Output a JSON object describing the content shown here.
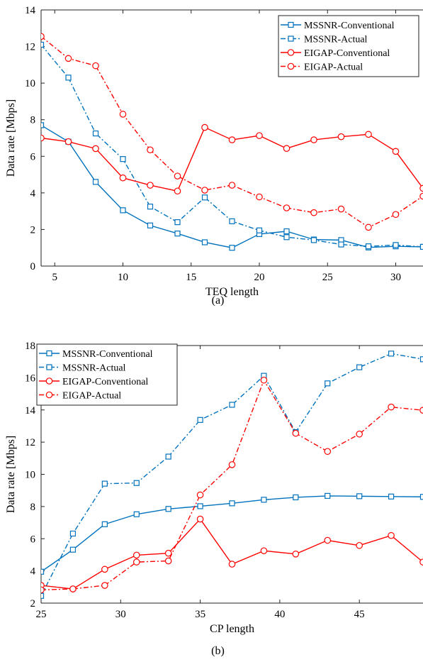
{
  "colors": {
    "mssnr": "#0072bd",
    "eigap": "#ff0000"
  },
  "chart_data": [
    {
      "type": "line",
      "caption": "(a)",
      "xlabel": "TEQ length",
      "ylabel": "Data rate [Mbps]",
      "xlim": [
        4,
        32
      ],
      "ylim": [
        0,
        14
      ],
      "xticks": [
        5,
        10,
        15,
        20,
        25,
        30
      ],
      "yticks": [
        0,
        2,
        4,
        6,
        8,
        10,
        12,
        14
      ],
      "legend_position": "top-right",
      "x": [
        4,
        6,
        8,
        10,
        12,
        14,
        16,
        18,
        20,
        22,
        24,
        26,
        28,
        30,
        32
      ],
      "series": [
        {
          "name": "MSSNR-Conventional",
          "color": "#0072bd",
          "style": "solid",
          "marker": "square",
          "values": [
            7.7,
            6.8,
            4.6,
            3.05,
            2.22,
            1.78,
            1.3,
            1.0,
            1.75,
            1.9,
            1.45,
            1.42,
            1.02,
            1.08,
            1.05
          ]
        },
        {
          "name": "MSSNR-Actual",
          "color": "#0072bd",
          "style": "dashdot",
          "marker": "square",
          "values": [
            12.1,
            10.3,
            7.25,
            5.85,
            3.25,
            2.4,
            3.75,
            2.45,
            1.95,
            1.58,
            1.42,
            1.18,
            1.08,
            1.15,
            1.05
          ]
        },
        {
          "name": "EIGAP-Conventional",
          "color": "#ff0000",
          "style": "solid",
          "marker": "circle",
          "values": [
            7.0,
            6.8,
            6.42,
            4.82,
            4.42,
            4.1,
            7.58,
            6.9,
            7.13,
            6.43,
            6.9,
            7.07,
            7.2,
            6.27,
            4.25
          ]
        },
        {
          "name": "EIGAP-Actual",
          "color": "#ff0000",
          "style": "dashdot",
          "marker": "circle",
          "values": [
            12.55,
            11.35,
            10.95,
            8.3,
            6.35,
            4.92,
            4.15,
            4.42,
            3.78,
            3.18,
            2.92,
            3.12,
            2.12,
            2.82,
            3.82
          ]
        }
      ]
    },
    {
      "type": "line",
      "caption": "(b)",
      "xlabel": "CP length",
      "ylabel": "Data rate [Mbps]",
      "xlim": [
        25,
        49
      ],
      "ylim": [
        2,
        18
      ],
      "xticks": [
        25,
        30,
        35,
        40,
        45
      ],
      "yticks": [
        2,
        4,
        6,
        8,
        10,
        12,
        14,
        16,
        18
      ],
      "legend_position": "top-left",
      "x": [
        25,
        27,
        29,
        31,
        33,
        35,
        37,
        39,
        41,
        43,
        45,
        47,
        49
      ],
      "series": [
        {
          "name": "MSSNR-Conventional",
          "color": "#0072bd",
          "style": "solid",
          "marker": "square",
          "values": [
            3.95,
            5.32,
            6.9,
            7.52,
            7.85,
            8.02,
            8.2,
            8.42,
            8.57,
            8.66,
            8.64,
            8.62,
            8.6
          ]
        },
        {
          "name": "MSSNR-Actual",
          "color": "#0072bd",
          "style": "dashdot",
          "marker": "square",
          "values": [
            2.45,
            6.32,
            9.42,
            9.46,
            11.1,
            13.38,
            14.32,
            16.12,
            12.62,
            15.65,
            16.65,
            17.5,
            17.15
          ]
        },
        {
          "name": "EIGAP-Conventional",
          "color": "#ff0000",
          "style": "solid",
          "marker": "circle",
          "values": [
            3.1,
            2.88,
            4.1,
            4.98,
            5.1,
            7.22,
            4.42,
            5.25,
            5.05,
            5.9,
            5.58,
            6.2,
            4.55
          ]
        },
        {
          "name": "EIGAP-Actual",
          "color": "#ff0000",
          "style": "dashdot",
          "marker": "circle",
          "values": [
            2.82,
            2.88,
            3.1,
            4.55,
            4.62,
            8.72,
            10.6,
            15.85,
            12.55,
            11.42,
            12.5,
            14.18,
            13.98
          ]
        }
      ]
    }
  ]
}
